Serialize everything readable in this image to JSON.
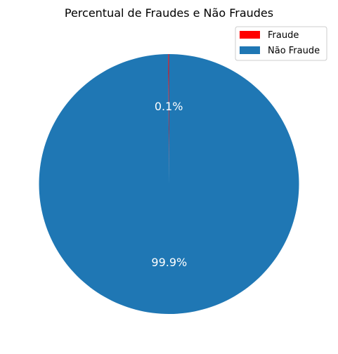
{
  "chart_data": {
    "type": "pie",
    "title": "Percentual de Fraudes e Não Fraudes",
    "categories": [
      "Fraude",
      "Não Fraude"
    ],
    "values": [
      0.1,
      99.9
    ],
    "value_labels": [
      "0.1%",
      "99.9%"
    ],
    "colors": [
      "#ff0000",
      "#1f77b4"
    ],
    "legend_position": "top-right",
    "start_angle": "top",
    "direction": "counterclockwise"
  }
}
